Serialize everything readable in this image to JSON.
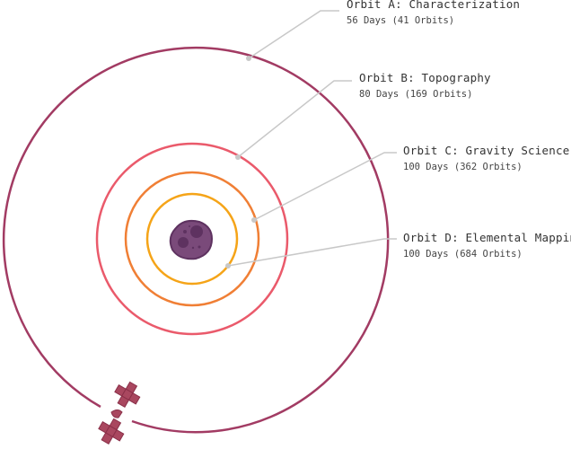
{
  "orbits": [
    {
      "title": "Orbit A: Characterization",
      "detail": "56 Days (41 Orbits)",
      "color": "#a23b63"
    },
    {
      "title": "Orbit B: Topography",
      "detail": "80 Days (169 Orbits)",
      "color": "#ea5a6b"
    },
    {
      "title": "Orbit C: Gravity Science",
      "detail": "100 Days (362 Orbits)",
      "color": "#f07f35"
    },
    {
      "title": "Orbit D: Elemental Mapping",
      "detail": "100 Days (684 Orbits)",
      "color": "#f5a418"
    }
  ],
  "colors": {
    "body": "#7a4a7a",
    "satellite": "#a9475f",
    "leader": "#c8c8c8"
  }
}
